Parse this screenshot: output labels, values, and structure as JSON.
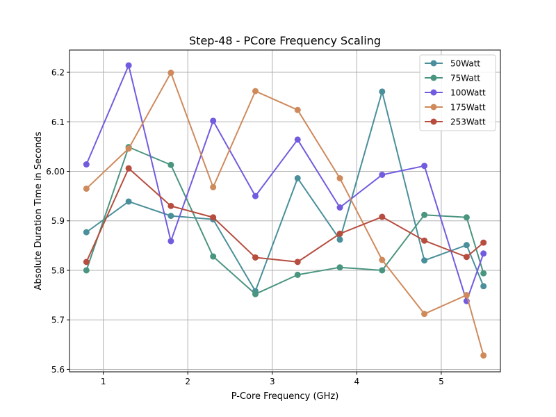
{
  "chart_data": {
    "type": "line",
    "title": "Step-48 - PCore Frequency Scaling",
    "xlabel": "P-Core Frequency (GHz)",
    "ylabel": "Absolute Duration Time in Seconds",
    "xlim": [
      0.6,
      5.7
    ],
    "ylim": [
      5.595,
      6.245
    ],
    "xticks": [
      1,
      2,
      3,
      4,
      5
    ],
    "xtick_labels": [
      "1",
      "2",
      "3",
      "4",
      "5"
    ],
    "yticks": [
      5.6,
      5.7,
      5.8,
      5.9,
      6.0,
      6.1,
      6.2
    ],
    "ytick_labels": [
      "5.6",
      "5.7",
      "5.8",
      "5.9",
      "6.00",
      "6.1",
      "6.2"
    ],
    "grid": true,
    "legend_position": "top-right",
    "x": [
      0.8,
      1.3,
      1.8,
      2.3,
      2.8,
      3.3,
      3.8,
      4.3,
      4.8,
      5.3,
      5.5
    ],
    "series": [
      {
        "name": "50Watt",
        "color": "#4a8f9b",
        "values": [
          5.877,
          5.939,
          5.91,
          5.903,
          5.758,
          5.986,
          5.862,
          6.161,
          5.82,
          5.851,
          5.768
        ]
      },
      {
        "name": "75Watt",
        "color": "#4a9580",
        "values": [
          5.8,
          6.049,
          6.013,
          5.828,
          5.752,
          5.791,
          5.806,
          5.8,
          5.912,
          5.907,
          5.794
        ]
      },
      {
        "name": "100Watt",
        "color": "#735be0",
        "values": [
          6.014,
          6.214,
          5.859,
          6.102,
          5.95,
          6.064,
          5.927,
          5.993,
          6.011,
          5.738,
          5.834
        ]
      },
      {
        "name": "175Watt",
        "color": "#cf8a5c",
        "values": [
          5.965,
          6.046,
          6.199,
          5.968,
          6.162,
          6.124,
          5.986,
          5.821,
          5.712,
          5.75,
          5.628
        ]
      },
      {
        "name": "253Watt",
        "color": "#b64d3f",
        "values": [
          5.817,
          6.006,
          5.93,
          5.907,
          5.826,
          5.817,
          5.874,
          5.908,
          5.86,
          5.827,
          5.856
        ]
      }
    ]
  }
}
